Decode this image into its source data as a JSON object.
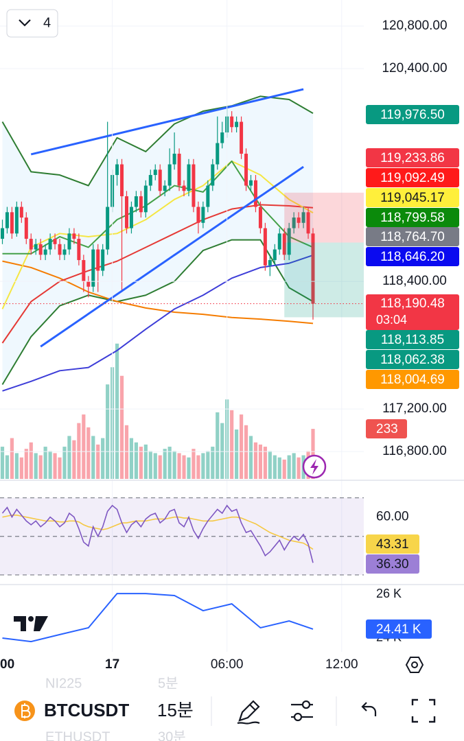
{
  "interval_button": {
    "label": "4"
  },
  "price_pane": {
    "ylim": [
      116530,
      121045
    ],
    "xlim": [
      -0.5,
      96.6
    ],
    "up_color": "#089981",
    "down_color": "#f23645",
    "yticks": [
      {
        "value": 120800,
        "label": "120,800.00"
      },
      {
        "value": 120400,
        "label": "120,400.00"
      },
      {
        "value": 118400,
        "label": "118,400.00"
      },
      {
        "value": 117200,
        "label": "117,200.00"
      },
      {
        "value": 116800,
        "label": "116,800.00"
      }
    ],
    "candles": [
      [
        118800,
        118980,
        118750,
        118900
      ],
      [
        118900,
        119100,
        118850,
        119050
      ],
      [
        119050,
        119100,
        118800,
        118850
      ],
      [
        118850,
        119150,
        118820,
        119100
      ],
      [
        119100,
        119150,
        118950,
        119000
      ],
      [
        119000,
        119050,
        118750,
        118800
      ],
      [
        118800,
        118850,
        118650,
        118700
      ],
      [
        118700,
        118800,
        118650,
        118750
      ],
      [
        118750,
        118800,
        118600,
        118650
      ],
      [
        118650,
        118750,
        118600,
        118700
      ],
      [
        118700,
        118850,
        118650,
        118800
      ],
      [
        118800,
        118850,
        118700,
        118750
      ],
      [
        118750,
        118800,
        118600,
        118650
      ],
      [
        118650,
        118750,
        118600,
        118700
      ],
      [
        118700,
        118900,
        118650,
        118850
      ],
      [
        118850,
        118900,
        118750,
        118800
      ],
      [
        118800,
        118850,
        118550,
        118600
      ],
      [
        118600,
        118650,
        118300,
        118400
      ],
      [
        118400,
        118450,
        118250,
        118350
      ],
      [
        118350,
        118750,
        118300,
        118700
      ],
      [
        118700,
        118750,
        118300,
        118500
      ],
      [
        118500,
        118750,
        118450,
        118700
      ],
      [
        118700,
        119900,
        118650,
        119100
      ],
      [
        119100,
        119450,
        119050,
        119400
      ],
      [
        119400,
        119550,
        119300,
        119500
      ],
      [
        119500,
        119550,
        118300,
        119200
      ],
      [
        119200,
        119250,
        118850,
        118900
      ],
      [
        118900,
        119150,
        118850,
        119100
      ],
      [
        119100,
        119250,
        119050,
        119200
      ],
      [
        119200,
        119250,
        119000,
        119050
      ],
      [
        119050,
        119350,
        119000,
        119300
      ],
      [
        119300,
        119450,
        119250,
        119400
      ],
      [
        119400,
        119500,
        119350,
        119450
      ],
      [
        119450,
        119500,
        119200,
        119250
      ],
      [
        119250,
        119350,
        119200,
        119300
      ],
      [
        119300,
        119650,
        119250,
        119500
      ],
      [
        119500,
        119800,
        119450,
        119600
      ],
      [
        119600,
        119650,
        119250,
        119300
      ],
      [
        119300,
        119350,
        119200,
        119250
      ],
      [
        119250,
        119550,
        119200,
        119500
      ],
      [
        119500,
        119550,
        119050,
        119100
      ],
      [
        119100,
        119150,
        118850,
        118950
      ],
      [
        118950,
        119150,
        118900,
        119100
      ],
      [
        119100,
        119350,
        119050,
        119300
      ],
      [
        119300,
        119550,
        119250,
        119500
      ],
      [
        119500,
        119950,
        119450,
        119700
      ],
      [
        119700,
        119900,
        119650,
        119800
      ],
      [
        119800,
        120050,
        119750,
        119950
      ],
      [
        119950,
        120000,
        119800,
        119850
      ],
      [
        119850,
        119950,
        119800,
        119900
      ],
      [
        119900,
        119950,
        119550,
        119600
      ],
      [
        119600,
        119650,
        119250,
        119300
      ],
      [
        119300,
        119400,
        119250,
        119350
      ],
      [
        119350,
        119400,
        119050,
        119100
      ],
      [
        119100,
        119150,
        118850,
        118900
      ],
      [
        118900,
        118950,
        118500,
        118550
      ],
      [
        118550,
        118650,
        118450,
        118600
      ],
      [
        118600,
        118750,
        118550,
        118700
      ],
      [
        118700,
        118900,
        118650,
        118850
      ],
      [
        118850,
        118900,
        118600,
        118650
      ],
      [
        118650,
        118950,
        118600,
        118900
      ],
      [
        118900,
        119050,
        118850,
        119000
      ],
      [
        119000,
        119050,
        118900,
        118950
      ],
      [
        118950,
        119100,
        118900,
        119050
      ],
      [
        119050,
        119100,
        118800,
        118850
      ],
      [
        118850,
        118900,
        118040,
        118190
      ]
    ],
    "overlay_index": [
      0,
      6,
      12,
      18,
      24,
      30,
      36,
      42,
      48,
      54,
      60,
      65
    ],
    "overlays": [
      {
        "color": "#2e7d32",
        "values": [
          119900,
          119430,
          119400,
          119300,
          119750,
          119620,
          119880,
          120000,
          120050,
          120140,
          120110,
          119980
        ]
      },
      {
        "color": "#2e7d32",
        "values": [
          117430,
          117880,
          118170,
          118270,
          118210,
          118270,
          118400,
          118690,
          118790,
          118790,
          118340,
          118210
        ]
      },
      {
        "color": "#f57c00",
        "values": [
          118590,
          118530,
          118430,
          118300,
          118210,
          118150,
          118110,
          118090,
          118060,
          118045,
          118025,
          118005
        ]
      },
      {
        "color": "#3d3dd8",
        "values": [
          117370,
          117460,
          117560,
          117590,
          117750,
          117950,
          118140,
          118270,
          118430,
          118530,
          118570,
          118646
        ]
      },
      {
        "color": "#e53935",
        "values": [
          117820,
          118210,
          118400,
          118500,
          118590,
          118720,
          118850,
          118980,
          119080,
          119120,
          119110,
          119092
        ]
      },
      {
        "color": "#f5e642",
        "values": [
          118140,
          118720,
          118850,
          118820,
          118850,
          118980,
          119170,
          119300,
          119530,
          119400,
          119170,
          119045
        ]
      },
      {
        "color": "#43a047",
        "values": [
          118660,
          118660,
          118820,
          118720,
          118980,
          119110,
          119300,
          119240,
          119530,
          119110,
          118820,
          118720
        ]
      }
    ],
    "trendlines": [
      {
        "color": "#2962ff",
        "x": [
          6,
          63
        ],
        "values": [
          119594,
          120206
        ]
      },
      {
        "color": "#2962ff",
        "x": [
          8,
          63
        ],
        "values": [
          117787,
          119477
        ]
      }
    ],
    "position": {
      "x": [
        59,
        77
      ],
      "stop": 119233.86,
      "entry": 118764.7,
      "target": 118062.38
    },
    "tags": [
      {
        "value": 119976.5,
        "label": "119,976.50",
        "color": "#089981",
        "text_color": "#ffffff"
      },
      {
        "value": 119233.86,
        "label": "119,233.86",
        "color": "#f23645",
        "text_color": "#ffffff"
      },
      {
        "value": 119092.49,
        "label": "119,092.49",
        "color": "#ff1a1a",
        "text_color": "#ffffff"
      },
      {
        "value": 119045.17,
        "label": "119,045.17",
        "color": "#ffef3b",
        "text_color": "#131722"
      },
      {
        "value": 118799.58,
        "label": "118,799.58",
        "color": "#0b8a0b",
        "text_color": "#ffffff"
      },
      {
        "value": 118764.7,
        "label": "118,764.70",
        "color": "#787b86",
        "text_color": "#ffffff"
      },
      {
        "value": 118646.2,
        "label": "118,646.20",
        "color": "#0a0af0",
        "text_color": "#ffffff"
      },
      {
        "value": 118113.85,
        "label": "118,113.85",
        "color": "#089981",
        "text_color": "#ffffff"
      },
      {
        "value": 118062.38,
        "label": "118,062.38",
        "color": "#089981",
        "text_color": "#ffffff"
      },
      {
        "value": 118004.69,
        "label": "118,004.69",
        "color": "#ff9800",
        "text_color": "#ffffff"
      }
    ],
    "current_price": {
      "value": 118190.48,
      "label": "118,190.48",
      "countdown": "03:04",
      "color": "#f23645"
    }
  },
  "volume": {
    "ylim": [
      0,
      2230
    ],
    "values": [
      150,
      110,
      190,
      120,
      100,
      140,
      170,
      120,
      110,
      150,
      130,
      120,
      100,
      150,
      200,
      180,
      260,
      300,
      240,
      200,
      160,
      190,
      440,
      520,
      630,
      480,
      250,
      190,
      170,
      150,
      160,
      130,
      120,
      110,
      140,
      150,
      130,
      120,
      110,
      100,
      140,
      110,
      120,
      130,
      150,
      310,
      260,
      370,
      320,
      230,
      300,
      250,
      200,
      170,
      160,
      150,
      130,
      110,
      100,
      90,
      110,
      120,
      100,
      110,
      130,
      233
    ],
    "tag": 233,
    "tag_color": "#ef5350"
  },
  "rsi": {
    "ylim": [
      25,
      79.1
    ],
    "levels": [
      70,
      50,
      30
    ],
    "yticks": [
      {
        "value": 60,
        "label": "60.00"
      }
    ],
    "line_color": "#7e57c2",
    "ma_color": "#f5c842",
    "values": [
      62,
      65,
      60,
      64,
      61,
      58,
      56,
      58,
      55,
      57,
      60,
      58,
      55,
      57,
      62,
      60,
      54,
      47,
      45,
      55,
      50,
      55,
      63,
      66,
      64,
      57,
      52,
      56,
      58,
      55,
      59,
      61,
      62,
      57,
      59,
      63,
      64,
      57,
      55,
      60,
      53,
      49,
      54,
      58,
      61,
      64,
      62,
      66,
      63,
      64,
      57,
      52,
      53,
      49,
      45,
      40,
      42,
      45,
      48,
      43,
      47,
      50,
      48,
      51,
      46,
      36.3
    ],
    "ma_values": [
      60,
      60.5,
      61,
      61,
      60.5,
      60,
      59.5,
      59,
      58.5,
      58,
      58,
      58,
      57.5,
      57.5,
      58,
      58,
      57.5,
      56,
      55,
      54.5,
      54,
      53.5,
      54,
      55,
      56,
      57,
      57,
      57.5,
      58,
      58,
      58,
      58.5,
      59,
      59,
      59,
      59.5,
      60,
      60,
      59.5,
      59.5,
      59,
      58.5,
      58,
      58,
      58,
      58.5,
      59,
      59.5,
      60,
      60,
      59.5,
      58.5,
      57.5,
      56.5,
      55,
      53.5,
      52,
      51,
      50,
      49,
      48,
      47.5,
      47,
      46.5,
      45,
      43.31
    ],
    "tags": [
      {
        "value": 43.31,
        "label": "43.31",
        "color": "#f7d54a",
        "text_color": "#131722"
      },
      {
        "value": 36.3,
        "label": "36.30",
        "color": "#9c7fd6",
        "text_color": "#131722"
      }
    ]
  },
  "lower_pane": {
    "ylim": [
      22060,
      26440
    ],
    "color": "#2962ff",
    "yticks": [
      {
        "value": 26000,
        "label": "26 K"
      },
      {
        "value": 24000,
        "label": "24 K"
      }
    ],
    "values": [
      24000,
      23840,
      24160,
      24470,
      26030,
      26030,
      25940,
      25250,
      25560,
      24470,
      24780,
      24410
    ],
    "tag": {
      "value": 24410,
      "label": "24.41 K",
      "color": "#2962ff"
    }
  },
  "time_axis": [
    {
      "value": -1,
      "label": "00"
    },
    {
      "value": 23,
      "label": "17"
    },
    {
      "value": 47,
      "label": "06:00"
    },
    {
      "value": 71,
      "label": "12:00"
    }
  ],
  "toolbar": {
    "symbol": "BTCUSDT",
    "interval": "15분",
    "background_items": [
      "NI225",
      "5분",
      "ETHUSDT",
      "30분"
    ]
  }
}
